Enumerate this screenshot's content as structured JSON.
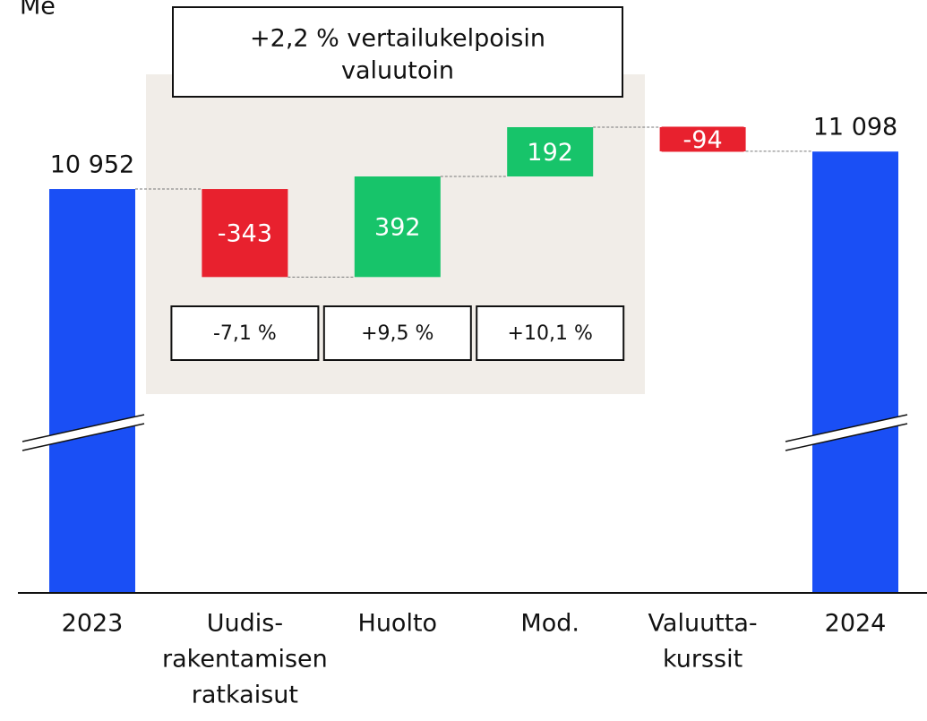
{
  "chart_data": {
    "type": "waterfall",
    "y_label": "Me",
    "annotation": [
      "+2,2 % vertailukelpoisin",
      "valuutoin"
    ],
    "categories": [
      [
        "2023"
      ],
      [
        "Uudis-",
        "rakentamisen",
        "ratkaisut"
      ],
      [
        "Huolto"
      ],
      [
        "Mod."
      ],
      [
        "Valuutta-",
        "kurssit"
      ],
      [
        "2024"
      ]
    ],
    "values": [
      10952,
      -343,
      392,
      192,
      -94,
      11098
    ],
    "value_labels": [
      "10 952",
      "-343",
      "392",
      "192",
      "-94",
      "11 098"
    ],
    "totals": [
      true,
      false,
      false,
      false,
      false,
      true
    ],
    "segment_labels": [
      "-7,1 %",
      "+9,5 %",
      "+10,1 %"
    ],
    "total_color": "#1a4ff5",
    "increase_color": "#17c46a",
    "decrease_color": "#e8212e",
    "axis_break": true
  }
}
